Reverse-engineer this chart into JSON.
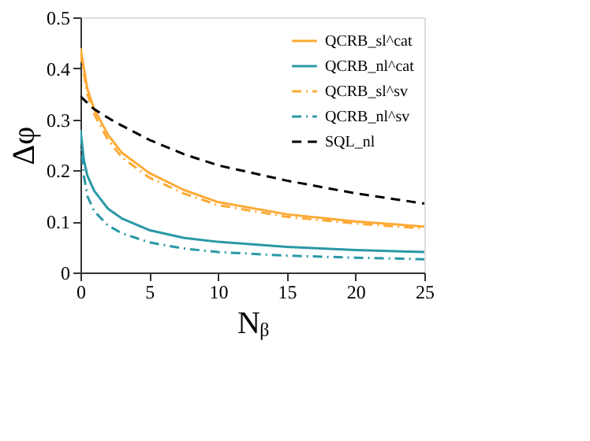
{
  "chart_data": {
    "type": "line",
    "xlabel": "Nᵦ",
    "ylabel": "Δφ",
    "xlim": [
      0,
      25
    ],
    "ylim": [
      0,
      0.5
    ],
    "xticks": [
      0,
      5,
      10,
      15,
      20,
      25
    ],
    "yticks": [
      {
        "value": 0,
        "label": "0"
      },
      0.1,
      0.2,
      0.3,
      0.4,
      0.5
    ],
    "grid": false,
    "legend": "top right",
    "marker": "none",
    "series": [
      {
        "name": "QCRB_sl^cat",
        "color": "#fdaa35",
        "line_style": "solid",
        "x": [
          0,
          0.5,
          1,
          2,
          3,
          5,
          7.5,
          10,
          15,
          20,
          25
        ],
        "values": [
          0.44,
          0.36,
          0.32,
          0.27,
          0.235,
          0.195,
          0.162,
          0.138,
          0.114,
          0.1,
          0.09
        ]
      },
      {
        "name": "QCRB_nl^cat",
        "color": "#2a98a6",
        "line_style": "solid",
        "x": [
          0,
          0.25,
          0.5,
          1,
          2,
          3,
          5,
          7.5,
          10,
          15,
          20,
          25
        ],
        "values": [
          0.28,
          0.22,
          0.19,
          0.16,
          0.125,
          0.106,
          0.083,
          0.068,
          0.06,
          0.05,
          0.044,
          0.04
        ]
      },
      {
        "name": "QCRB_sl^sv",
        "color": "#fdaa35",
        "line_style": "dashdot",
        "x": [
          0,
          0.5,
          1,
          2,
          3,
          5,
          7.5,
          10,
          15,
          20,
          25
        ],
        "values": [
          0.43,
          0.35,
          0.31,
          0.26,
          0.226,
          0.186,
          0.155,
          0.132,
          0.109,
          0.096,
          0.086
        ]
      },
      {
        "name": "QCRB_nl^sv",
        "color": "#2a98a6",
        "line_style": "dashdot",
        "x": [
          0,
          0.25,
          0.5,
          1,
          2,
          3,
          5,
          7.5,
          10,
          15,
          20,
          25
        ],
        "values": [
          0.27,
          0.19,
          0.15,
          0.12,
          0.092,
          0.077,
          0.059,
          0.047,
          0.04,
          0.033,
          0.029,
          0.026
        ]
      },
      {
        "name": "SQL_nl",
        "color": "#000000",
        "line_style": "dashed",
        "x": [
          0,
          1,
          2.5,
          5,
          7.5,
          10,
          15,
          20,
          25
        ],
        "values": [
          0.345,
          0.32,
          0.295,
          0.26,
          0.232,
          0.21,
          0.18,
          0.155,
          0.135
        ]
      }
    ]
  }
}
